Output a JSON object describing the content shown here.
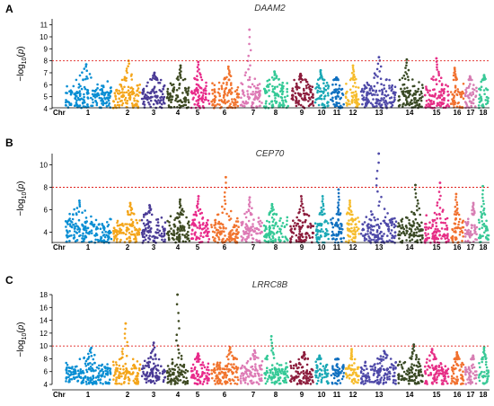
{
  "chr_axis_label": "Chr",
  "colors": {
    "chromosomes": [
      "#0a8ed3",
      "#f4a51a",
      "#4a3b96",
      "#3e4a22",
      "#e82a8a",
      "#f1742e",
      "#dd7ab5",
      "#34c996",
      "#8c1c3c",
      "#1aa8b5",
      "#1070c0",
      "#f6bc2c",
      "#4e49a8",
      "#3a4a25",
      "#e62e86",
      "#f1702e",
      "#d77eb3",
      "#3ac997"
    ],
    "threshold": "#e0201c"
  },
  "chart_data": [
    {
      "type": "scatter",
      "panel": "A",
      "title": "DAAM2",
      "ylabel": "-log10(p)",
      "ylim": [
        4,
        11.5
      ],
      "yticks": [
        4,
        5,
        6,
        7,
        8,
        9,
        10,
        11
      ],
      "threshold": 8,
      "chromosomes": [
        "1",
        "2",
        "3",
        "4",
        "5",
        "6",
        "7",
        "8",
        "9",
        "10",
        "11",
        "12",
        "13",
        "14",
        "15",
        "16",
        "17",
        "18"
      ],
      "chromosome_peaks": [
        7.7,
        8.0,
        7.0,
        7.6,
        7.9,
        7.5,
        10.6,
        7.1,
        6.9,
        7.2,
        6.6,
        7.6,
        8.3,
        8.1,
        8.2,
        7.4,
        6.7,
        6.8
      ]
    },
    {
      "type": "scatter",
      "panel": "B",
      "title": "CEP70",
      "ylabel": "-log10(p)",
      "ylim": [
        3,
        11
      ],
      "yticks": [
        4,
        6,
        8,
        10
      ],
      "threshold": 8,
      "chromosomes": [
        "1",
        "2",
        "3",
        "4",
        "5",
        "6",
        "7",
        "8",
        "9",
        "10",
        "11",
        "12",
        "13",
        "14",
        "15",
        "16",
        "17",
        "18"
      ],
      "chromosome_peaks": [
        6.8,
        6.6,
        6.4,
        6.9,
        7.2,
        8.9,
        7.1,
        6.5,
        7.2,
        7.2,
        7.8,
        6.8,
        11.0,
        8.2,
        8.4,
        7.4,
        6.6,
        8.1
      ]
    },
    {
      "type": "scatter",
      "panel": "C",
      "title": "LRRC8B",
      "ylabel": "-log10(p)",
      "ylim": [
        4,
        18
      ],
      "yticks": [
        4,
        6,
        8,
        10,
        12,
        14,
        16,
        18
      ],
      "threshold": 10,
      "chromosomes": [
        "1",
        "2",
        "3",
        "4",
        "5",
        "6",
        "7",
        "8",
        "9",
        "10",
        "11",
        "12",
        "13",
        "14",
        "15",
        "16",
        "17",
        "18"
      ],
      "chromosome_peaks": [
        9.7,
        13.5,
        10.5,
        18.0,
        8.8,
        9.8,
        9.3,
        11.5,
        9.0,
        8.5,
        8.0,
        9.5,
        9.2,
        10.2,
        9.5,
        9.0,
        8.5,
        9.8
      ]
    }
  ]
}
